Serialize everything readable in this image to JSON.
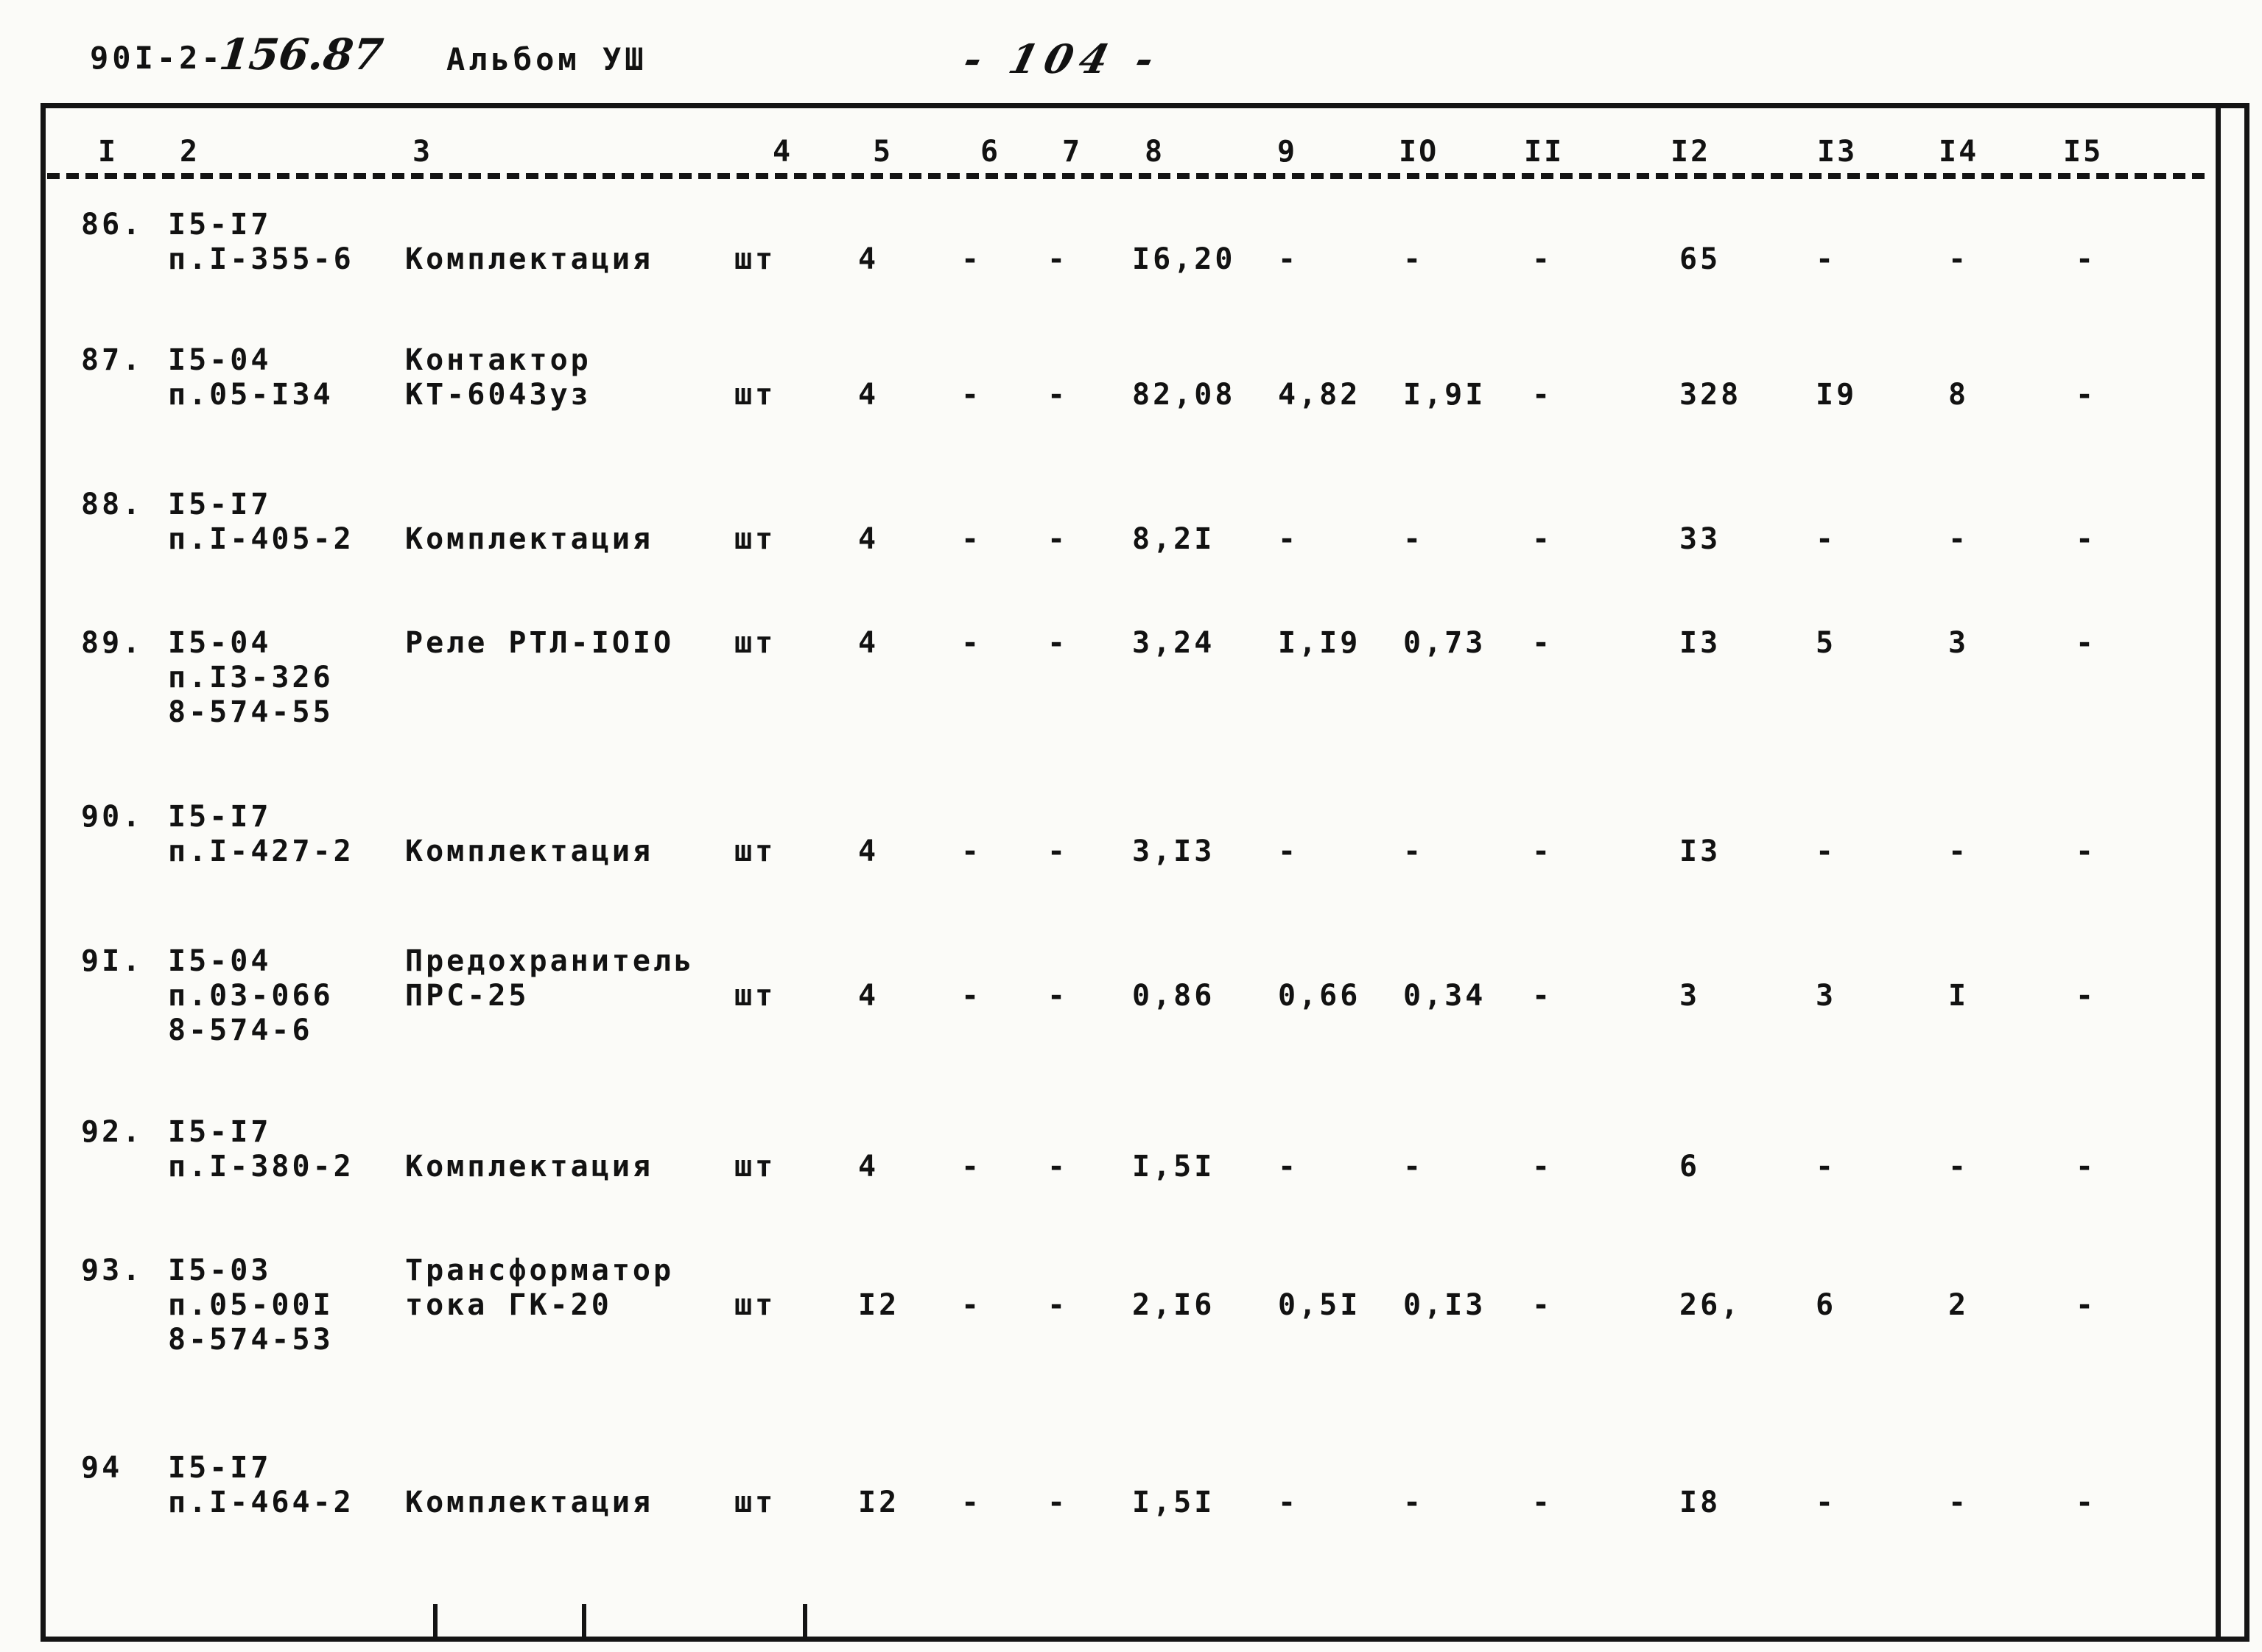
{
  "header": {
    "code_typed": "90I-2-",
    "code_hand": "156.87",
    "album": "Альбом УШ",
    "page_number": "- 104 -"
  },
  "table": {
    "column_headers": [
      "I",
      "2",
      "3",
      "4",
      "5",
      "6",
      "7",
      "8",
      "9",
      "IO",
      "II",
      "I2",
      "I3",
      "I4",
      "I5"
    ],
    "rows": [
      {
        "num": "86.",
        "code": [
          "I5-I7",
          "п.I-355-6"
        ],
        "name": [
          "Комплектация"
        ],
        "unit": "шт",
        "values": [
          "4",
          "-",
          "-",
          "I6,20",
          "-",
          "-",
          "-",
          "65",
          "-",
          "-",
          "-"
        ]
      },
      {
        "num": "87.",
        "code": [
          "I5-04",
          "п.05-I34"
        ],
        "name": [
          "Контактор",
          "КТ-6043уз"
        ],
        "unit": "шт",
        "values": [
          "4",
          "-",
          "-",
          "82,08",
          "4,82",
          "I,9I",
          "-",
          "328",
          "I9",
          "8",
          "-"
        ]
      },
      {
        "num": "88.",
        "code": [
          "I5-I7",
          "п.I-405-2"
        ],
        "name": [
          "Комплектация"
        ],
        "unit": "шт",
        "values": [
          "4",
          "-",
          "-",
          "8,2I",
          "-",
          "-",
          "-",
          "33",
          "-",
          "-",
          "-"
        ]
      },
      {
        "num": "89.",
        "code": [
          "I5-04",
          "п.I3-326",
          "8-574-55"
        ],
        "name": [
          "Реле РТЛ-IOIO"
        ],
        "unit": "шт",
        "values": [
          "4",
          "-",
          "-",
          "3,24",
          "I,I9",
          "0,73",
          "-",
          "I3",
          "5",
          "3",
          "-"
        ]
      },
      {
        "num": "90.",
        "code": [
          "I5-I7",
          "п.I-427-2"
        ],
        "name": [
          "Комплектация"
        ],
        "unit": "шт",
        "values": [
          "4",
          "-",
          "-",
          "3,I3",
          "-",
          "-",
          "-",
          "I3",
          "-",
          "-",
          "-"
        ]
      },
      {
        "num": "9I.",
        "code": [
          "I5-04",
          "п.03-066",
          "8-574-6"
        ],
        "name": [
          "Предохранитель",
          "ПРС-25"
        ],
        "unit": "шт",
        "values": [
          "4",
          "-",
          "-",
          "0,86",
          "0,66",
          "0,34",
          "-",
          "3",
          "3",
          "I",
          "-"
        ]
      },
      {
        "num": "92.",
        "code": [
          "I5-I7",
          "п.I-380-2"
        ],
        "name": [
          "Комплектация"
        ],
        "unit": "шт",
        "values": [
          "4",
          "-",
          "-",
          "I,5I",
          "-",
          "-",
          "-",
          "6",
          "-",
          "-",
          "-"
        ]
      },
      {
        "num": "93.",
        "code": [
          "I5-03",
          "п.05-00I",
          "8-574-53"
        ],
        "name": [
          "Трансформатор",
          "тока ГК-20"
        ],
        "unit": "шт",
        "values": [
          "I2",
          "-",
          "-",
          "2,I6",
          "0,5I",
          "0,I3",
          "-",
          "26,",
          "6",
          "2",
          "-"
        ]
      },
      {
        "num": "94",
        "code": [
          "I5-I7",
          "п.I-464-2"
        ],
        "name": [
          "Комплектация"
        ],
        "unit": "шт",
        "values": [
          "I2",
          "-",
          "-",
          "I,5I",
          "-",
          "-",
          "-",
          "I8",
          "-",
          "-",
          "-"
        ]
      }
    ]
  }
}
